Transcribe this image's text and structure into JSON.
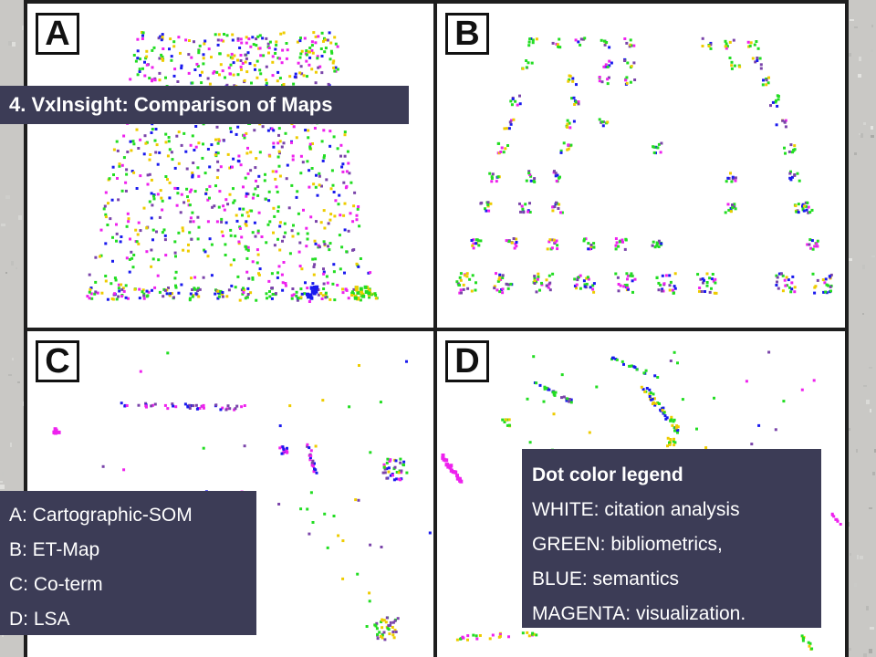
{
  "title": "4. VxInsight: Comparison of Maps",
  "panels": [
    {
      "label": "A"
    },
    {
      "label": "B"
    },
    {
      "label": "C"
    },
    {
      "label": "D"
    }
  ],
  "methods_box": {
    "lines": [
      "A: Cartographic-SOM",
      "B: ET-Map",
      "C: Co-term",
      "D: LSA"
    ]
  },
  "legend_box": {
    "heading": "Dot color legend",
    "lines": [
      "WHITE: citation analysis",
      "GREEN: bibliometrics,",
      "BLUE: semantics",
      "MAGENTA: visualization."
    ]
  },
  "dot_colors": {
    "green": "#22dd22",
    "yellow": "#eecc00",
    "blue": "#1a1aee",
    "magenta": "#ee22ee",
    "purple": "#7a44aa"
  },
  "colors": {
    "label_box_bg": "#3c3c56",
    "frame": "#1e1e1e",
    "page_bg": "#c9c8c5"
  }
}
